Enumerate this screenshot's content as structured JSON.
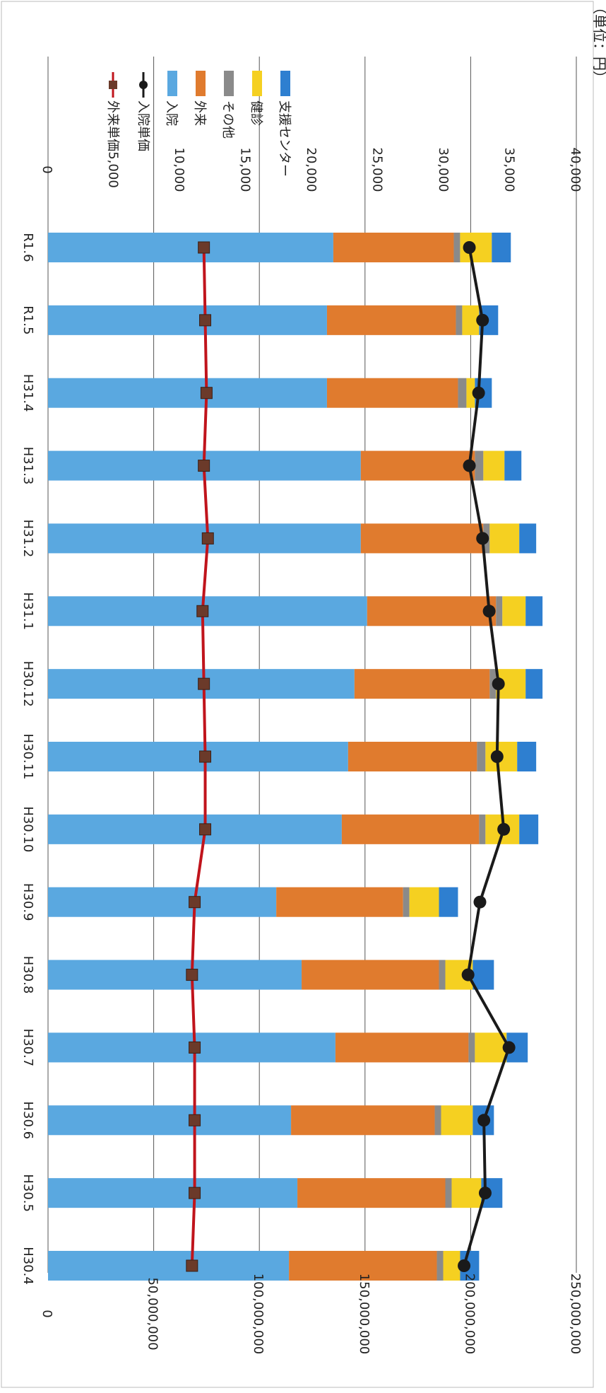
{
  "chart_data": {
    "type": "bar",
    "orientation": "rotated-90-clockwise",
    "stacked": true,
    "categories": [
      "H30.4",
      "H30.5",
      "H30.6",
      "H30.7",
      "H30.8",
      "H30.9",
      "H30.10",
      "H30.11",
      "H30.12",
      "H31.1",
      "H31.2",
      "H31.3",
      "H31.4",
      "R1.5",
      "R1.6"
    ],
    "left_axis": {
      "min": 0,
      "max": 250000000,
      "ticks": [
        "0",
        "50,000,000",
        "100,000,000",
        "150,000,000",
        "200,000,000",
        "250,000,000"
      ]
    },
    "right_axis": {
      "min": 0,
      "max": 40000,
      "ticks": [
        "0",
        "5,000",
        "10,000",
        "15,000",
        "20,000",
        "25,000",
        "30,000",
        "35,000",
        "40,000"
      ]
    },
    "grid": true,
    "legend_position": "right",
    "colors": {
      "支援センター": "#2e7fd0",
      "健診": "#f5d021",
      "その他": "#8a8a8a",
      "外来": "#e07b2e",
      "入院": "#5aa8e0",
      "入院単価": "#1a1a1a",
      "外来単価": "#c0141c",
      "外来単価_marker": "#6b3a2a"
    },
    "series": [
      {
        "name": "支援センター",
        "kind": "bar",
        "values": [
          9000000,
          10000000,
          10000000,
          10000000,
          10000000,
          9000000,
          9000000,
          9000000,
          8000000,
          8000000,
          8000000,
          8000000,
          8000000,
          9000000,
          9000000
        ]
      },
      {
        "name": "健診",
        "kind": "bar",
        "values": [
          8000000,
          14000000,
          15000000,
          15000000,
          13000000,
          14000000,
          16000000,
          15000000,
          14000000,
          11000000,
          14000000,
          10000000,
          4000000,
          8000000,
          15000000
        ]
      },
      {
        "name": "その他",
        "kind": "bar",
        "values": [
          3000000,
          3000000,
          3000000,
          3000000,
          3000000,
          3000000,
          3000000,
          4000000,
          3000000,
          3000000,
          3000000,
          4000000,
          4000000,
          3000000,
          3000000
        ]
      },
      {
        "name": "外来",
        "kind": "bar",
        "values": [
          70000000,
          70000000,
          68000000,
          63000000,
          65000000,
          60000000,
          65000000,
          61000000,
          64000000,
          61000000,
          58000000,
          54000000,
          62000000,
          61000000,
          57000000
        ]
      },
      {
        "name": "入院",
        "kind": "bar",
        "values": [
          114000000,
          118000000,
          115000000,
          136000000,
          120000000,
          108000000,
          139000000,
          142000000,
          145000000,
          151000000,
          148000000,
          148000000,
          132000000,
          132000000,
          135000000
        ]
      },
      {
        "name": "入院単価",
        "kind": "line",
        "marker": "circle",
        "values": [
          31500,
          33100,
          33000,
          34900,
          31800,
          32700,
          34500,
          34000,
          34100,
          33400,
          32900,
          31900,
          32600,
          32900,
          31900
        ]
      },
      {
        "name": "外来単価",
        "kind": "line",
        "marker": "square",
        "values": [
          10900,
          11100,
          11100,
          11100,
          10900,
          11100,
          11900,
          11900,
          11800,
          11700,
          12100,
          11800,
          12000,
          11900,
          11800
        ]
      }
    ]
  },
  "corner_text": "（単位：円）"
}
